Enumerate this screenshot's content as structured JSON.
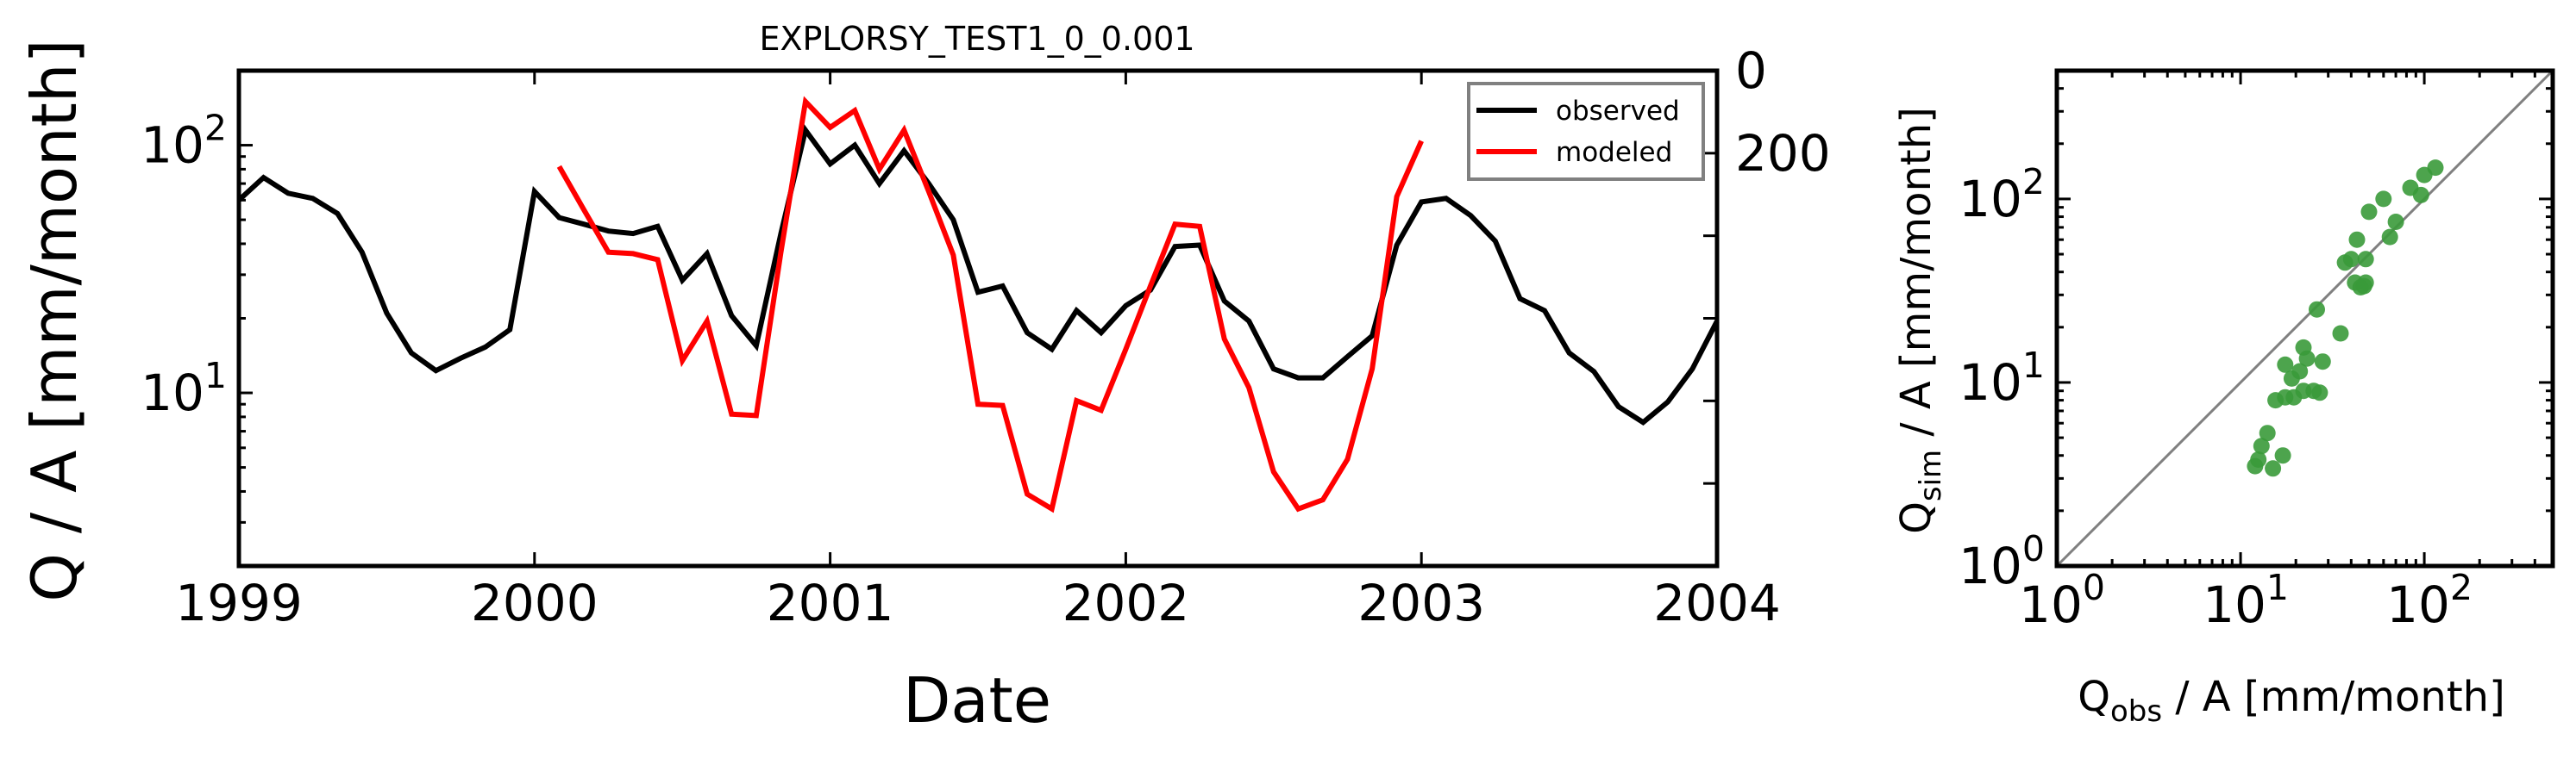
{
  "chart_data": [
    {
      "type": "line",
      "title": "EXPLORSY_TEST1_0_0.001",
      "xlabel": "Date",
      "ylabel": "Q / A [mm/month]",
      "x_tick_labels": [
        "1999",
        "2000",
        "2001",
        "2002",
        "2003",
        "2004"
      ],
      "xlim": [
        "1999-01",
        "2004-01"
      ],
      "ylim": [
        2,
        200
      ],
      "yscale": "log",
      "y_ticks": [
        {
          "value": 10,
          "base": "10",
          "exp": "1"
        },
        {
          "value": 100,
          "base": "10",
          "exp": "2"
        }
      ],
      "secondary_y_ticks": [
        "0",
        "200"
      ],
      "secondary_y_tick_count": 6,
      "legend": {
        "position": "top-right",
        "entries": [
          "observed",
          "modeled"
        ]
      },
      "series": [
        {
          "name": "observed",
          "color": "#000000",
          "start": "1999-01",
          "values": [
            60,
            74,
            64,
            61,
            53,
            37,
            21,
            14.5,
            12.3,
            13.8,
            15.3,
            18,
            65,
            51,
            48,
            45,
            44,
            47,
            28.5,
            36.5,
            20.5,
            15.5,
            44,
            115,
            84,
            100,
            70,
            95,
            70,
            50,
            25.5,
            27,
            17.5,
            15,
            21.5,
            17.5,
            22.5,
            26,
            39,
            39.5,
            23.5,
            19.5,
            12.5,
            11.5,
            11.5,
            14,
            17,
            39.5,
            59,
            61,
            52,
            41,
            24,
            21.5,
            14.5,
            12.2,
            8.8,
            7.6,
            9.2,
            12.5,
            19.5
          ]
        },
        {
          "name": "modeled",
          "color": "#ff0000",
          "start": "2000-02",
          "values": [
            82,
            55,
            37,
            36.5,
            34.5,
            13.5,
            19.5,
            8.2,
            8.1,
            37,
            150,
            118,
            138,
            80,
            115,
            65,
            36,
            9,
            8.9,
            3.9,
            3.4,
            9.3,
            8.5,
            15,
            27,
            48,
            47,
            16.5,
            10.5,
            4.8,
            3.4,
            3.7,
            5.4,
            12.5,
            62,
            104
          ]
        }
      ]
    },
    {
      "type": "scatter",
      "xlabel_main": "Q",
      "xlabel_sub": "obs",
      "xlabel_rest": " / A [mm/month]",
      "ylabel_main": "Q",
      "ylabel_sub": "sim",
      "ylabel_rest": " / A [mm/month]",
      "xscale": "log",
      "yscale": "log",
      "xlim": [
        1,
        500
      ],
      "ylim": [
        1,
        500
      ],
      "ticks": [
        {
          "value": 1,
          "base": "10",
          "exp": "0"
        },
        {
          "value": 10,
          "base": "10",
          "exp": "1"
        },
        {
          "value": 100,
          "base": "10",
          "exp": "2"
        }
      ],
      "reference_line": "1:1",
      "point_color": "#3a9a3a",
      "line_color": "#808080",
      "points": [
        [
          12,
          3.5
        ],
        [
          12.5,
          3.8
        ],
        [
          13,
          4.5
        ],
        [
          14,
          5.3
        ],
        [
          15,
          3.4
        ],
        [
          15.5,
          8
        ],
        [
          17,
          4
        ],
        [
          17.5,
          8.3
        ],
        [
          17.5,
          12.5
        ],
        [
          19,
          10.5
        ],
        [
          19.5,
          8.3
        ],
        [
          21,
          11.5
        ],
        [
          22,
          9
        ],
        [
          22,
          15.5
        ],
        [
          23,
          13.5
        ],
        [
          25,
          9
        ],
        [
          26,
          25
        ],
        [
          27,
          8.8
        ],
        [
          28,
          13
        ],
        [
          35,
          18.5
        ],
        [
          37,
          45
        ],
        [
          40,
          47
        ],
        [
          42,
          35
        ],
        [
          43,
          60
        ],
        [
          45,
          33
        ],
        [
          47,
          33.5
        ],
        [
          48,
          35
        ],
        [
          48,
          47
        ],
        [
          50,
          85
        ],
        [
          60,
          100
        ],
        [
          65,
          62
        ],
        [
          70,
          75
        ],
        [
          84,
          115
        ],
        [
          96,
          105
        ],
        [
          100,
          135
        ],
        [
          115,
          148
        ]
      ]
    }
  ]
}
